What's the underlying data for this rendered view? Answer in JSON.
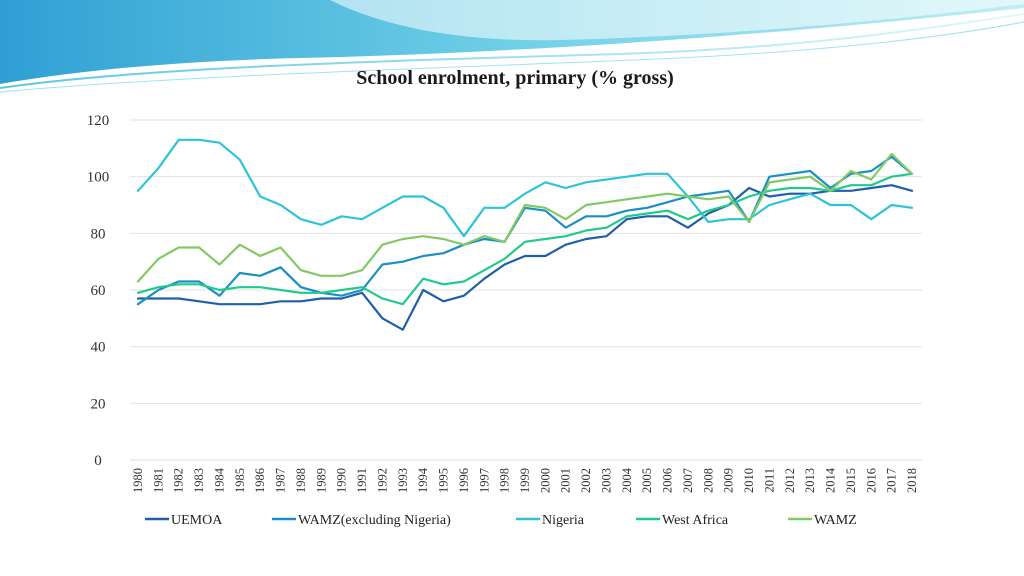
{
  "chart_data": {
    "type": "line",
    "title": "School enrolment, primary (% gross)",
    "xlabel": "",
    "ylabel": "",
    "ylim": [
      0,
      120
    ],
    "yticks": [
      0,
      20,
      40,
      60,
      80,
      100,
      120
    ],
    "grid": true,
    "legend_position": "bottom",
    "x": [
      "1980",
      "1981",
      "1982",
      "1983",
      "1984",
      "1985",
      "1986",
      "1987",
      "1988",
      "1989",
      "1990",
      "1991",
      "1992",
      "1993",
      "1994",
      "1995",
      "1996",
      "1997",
      "1998",
      "1999",
      "2000",
      "2001",
      "2002",
      "2003",
      "2004",
      "2005",
      "2006",
      "2007",
      "2008",
      "2009",
      "2010",
      "2011",
      "2012",
      "2013",
      "2014",
      "2015",
      "2016",
      "2017",
      "2018"
    ],
    "series": [
      {
        "name": "UEMOA",
        "color": "#1f5fa8",
        "values": [
          57,
          57,
          57,
          56,
          55,
          55,
          55,
          56,
          56,
          57,
          57,
          59,
          50,
          46,
          60,
          56,
          58,
          64,
          69,
          72,
          72,
          76,
          78,
          79,
          85,
          86,
          86,
          82,
          87,
          90,
          96,
          93,
          94,
          94,
          95,
          95,
          96,
          97,
          95
        ]
      },
      {
        "name": "WAMZ(excluding Nigeria)",
        "color": "#1a8fc4",
        "values": [
          55,
          60,
          63,
          63,
          58,
          66,
          65,
          68,
          61,
          59,
          58,
          60,
          69,
          70,
          72,
          73,
          76,
          78,
          77,
          89,
          88,
          82,
          86,
          86,
          88,
          89,
          91,
          93,
          94,
          95,
          84,
          100,
          101,
          102,
          96,
          101,
          102,
          107,
          101
        ]
      },
      {
        "name": "Nigeria",
        "color": "#2cc4d8",
        "values": [
          95,
          103,
          113,
          113,
          112,
          106,
          93,
          90,
          85,
          83,
          86,
          85,
          89,
          93,
          93,
          89,
          79,
          89,
          89,
          94,
          98,
          96,
          98,
          99,
          100,
          101,
          101,
          93,
          84,
          85,
          85,
          90,
          92,
          94,
          90,
          90,
          85,
          90,
          89
        ]
      },
      {
        "name": "West Africa",
        "color": "#22c98e",
        "values": [
          59,
          61,
          62,
          62,
          60,
          61,
          61,
          60,
          59,
          59,
          60,
          61,
          57,
          55,
          64,
          62,
          63,
          67,
          71,
          77,
          78,
          79,
          81,
          82,
          86,
          87,
          88,
          85,
          88,
          90,
          93,
          95,
          96,
          96,
          95,
          97,
          97,
          100,
          101
        ]
      },
      {
        "name": "WAMZ",
        "color": "#82c964",
        "values": [
          63,
          71,
          75,
          75,
          69,
          76,
          72,
          75,
          67,
          65,
          65,
          67,
          76,
          78,
          79,
          78,
          76,
          79,
          77,
          90,
          89,
          85,
          90,
          91,
          92,
          93,
          94,
          93,
          92,
          93,
          84,
          98,
          99,
          100,
          95,
          102,
          99,
          108,
          101
        ]
      }
    ]
  },
  "colors": {
    "header_dark": "#2f9fd4",
    "header_light": "#9fe3ef",
    "grid": "#e2e2e2"
  }
}
